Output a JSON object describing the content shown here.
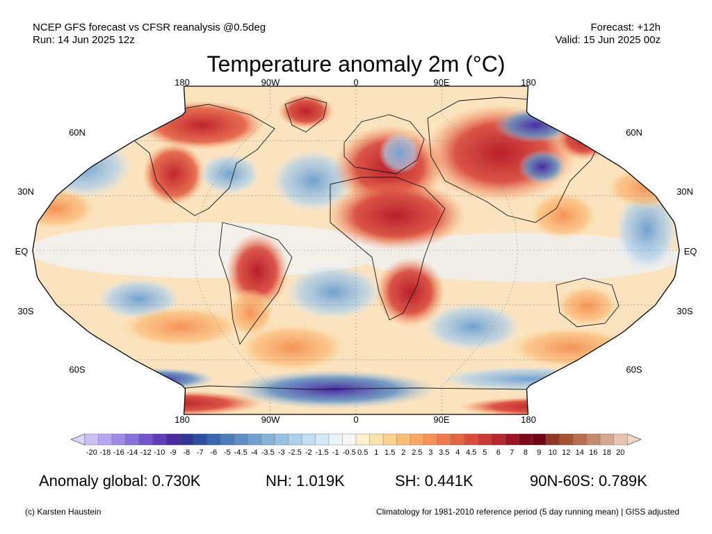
{
  "header": {
    "left_line1": "NCEP GFS forecast vs CFSR reanalysis @0.5deg",
    "left_line2": "Run: 14 Jun 2025 12z",
    "right_line1": "Forecast: +12h",
    "right_line2": "Valid: 15 Jun 2025 00z"
  },
  "title": "Temperature anomaly 2m (°C)",
  "map": {
    "projection": "Robinson",
    "lon_labels_top": [
      "180",
      "90W",
      "0",
      "90E",
      "180"
    ],
    "lon_labels_bottom": [
      "180",
      "90W",
      "0",
      "90E",
      "180"
    ],
    "lat_labels": [
      "60N",
      "30N",
      "EQ",
      "30S",
      "60S"
    ]
  },
  "colorbar": {
    "labels": [
      "-20",
      "-18",
      "-16",
      "-14",
      "-12",
      "-10",
      "-9",
      "-8",
      "-7",
      "-6",
      "-5",
      "-4.5",
      "-4",
      "-3.5",
      "-3",
      "-2.5",
      "-2",
      "-1.5",
      "-1",
      "-0.5",
      "0.5",
      "1",
      "1.5",
      "2",
      "2.5",
      "3",
      "3.5",
      "4",
      "4.5",
      "5",
      "6",
      "7",
      "8",
      "9",
      "10",
      "12",
      "14",
      "16",
      "18",
      "20"
    ],
    "colors": [
      "#c9bff2",
      "#b6a6ee",
      "#a18be6",
      "#8a70dc",
      "#7356cc",
      "#5e3fb8",
      "#4a2ba2",
      "#333593",
      "#2f4fa0",
      "#3766ad",
      "#4b7cb9",
      "#5d8ec4",
      "#72a0cf",
      "#86b1d9",
      "#9bc1e2",
      "#afd0ea",
      "#c3ddf1",
      "#d6e9f7",
      "#e8f3fb",
      "#f6f6f6",
      "#fdf0cf",
      "#fde2ae",
      "#fcd08e",
      "#fbbc78",
      "#f9a765",
      "#f59156",
      "#ee7b4b",
      "#e46443",
      "#d84e3b",
      "#ca3a34",
      "#b5262d",
      "#9d1525",
      "#7e0a1d",
      "#6e0716",
      "#8e3a22",
      "#a5532f",
      "#b56e4f",
      "#c48a6f",
      "#d4a68f",
      "#e6c4b0"
    ],
    "under_color": "#ddd6fb",
    "over_color": "#f1d7c7"
  },
  "stats": {
    "global": "Anomaly global: 0.730K",
    "nh": "NH: 1.019K",
    "sh": "SH: 0.441K",
    "polar": "90N-60S: 0.789K"
  },
  "footer": {
    "left": "(c) Karsten Haustein",
    "right": "Climatology for 1981-2010 reference period (5 day running mean) | GISS adjusted"
  }
}
